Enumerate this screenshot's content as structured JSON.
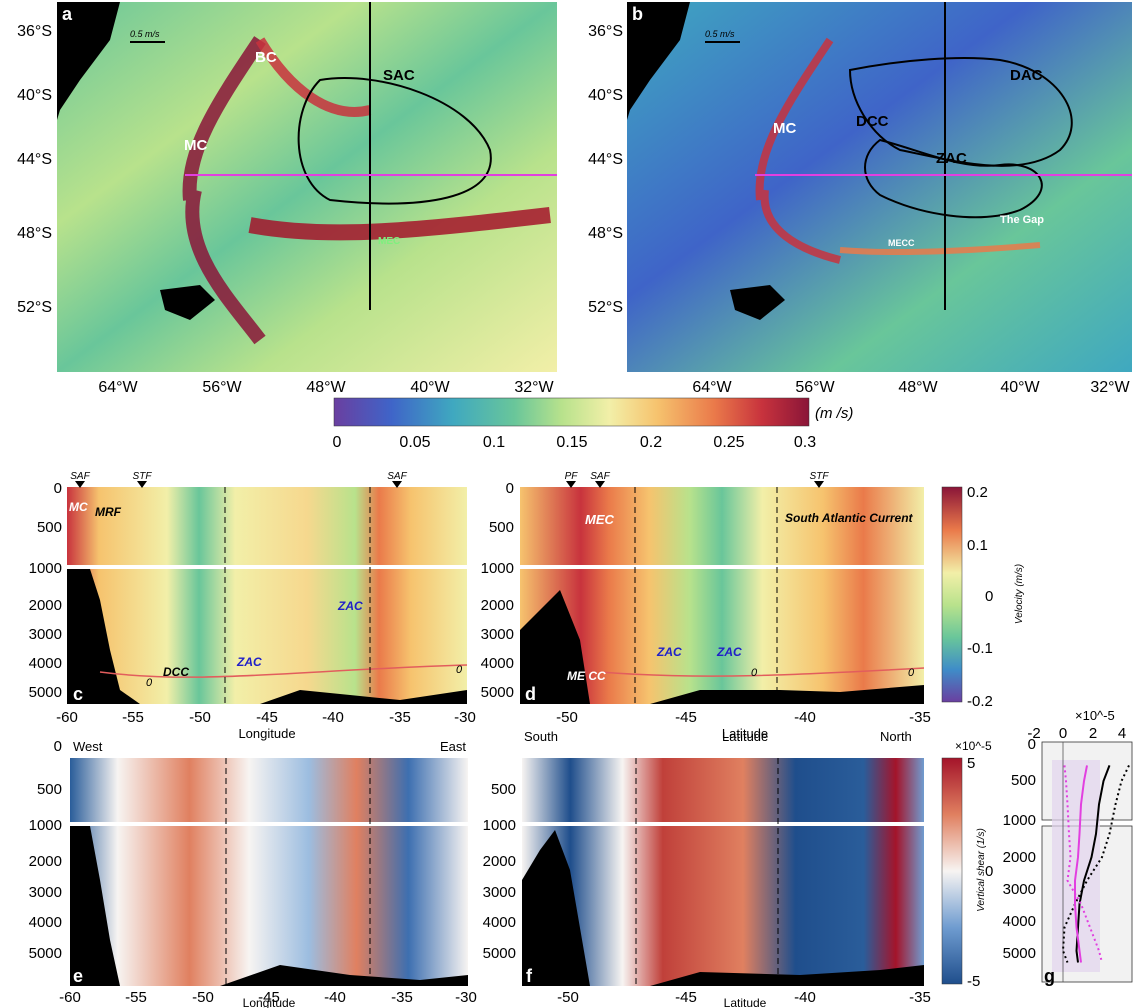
{
  "maps": {
    "a": {
      "panel_label": "a",
      "scale_label": "0.5 m/s",
      "lat_ticks": [
        "36°S",
        "40°S",
        "44°S",
        "48°S",
        "52°S"
      ],
      "lon_ticks": [
        "64°W",
        "56°W",
        "48°W",
        "40°W",
        "32°W"
      ],
      "features": [
        "BC",
        "SAC",
        "MC",
        "MEC"
      ]
    },
    "b": {
      "panel_label": "b",
      "scale_label": "0.5 m/s",
      "lat_ticks": [
        "36°S",
        "40°S",
        "44°S",
        "48°S",
        "52°S"
      ],
      "lon_ticks": [
        "64°W",
        "56°W",
        "48°W",
        "40°W",
        "32°W"
      ],
      "features": [
        "DAC",
        "MC",
        "DCC",
        "ZAC",
        "The Gap",
        "MECC"
      ]
    }
  },
  "colorbar_speed": {
    "ticks": [
      "0",
      "0.05",
      "0.1",
      "0.15",
      "0.2",
      "0.25",
      "0.3"
    ],
    "unit": "(m /s)"
  },
  "colors": {
    "map_colormap": [
      "#6a3fa0",
      "#3f64c8",
      "#3fa8c0",
      "#69c69a",
      "#b8e28c",
      "#f2efa8",
      "#f6c36e",
      "#ea7a4a",
      "#c8333d",
      "#8a1538"
    ],
    "diverging_negative": "#1f4e8c",
    "diverging_positive": "#a4142a",
    "section_line": "#e23fe0",
    "bathymetry": "#000000"
  },
  "chart_data": [
    {
      "type": "heatmap",
      "panel": "c",
      "xlabel": "Longitude",
      "x_ticks": [
        "-60",
        "-55",
        "-50",
        "-45",
        "-40",
        "-35",
        "-30"
      ],
      "xlim": [
        -60,
        -30
      ],
      "y_ticks_upper": [
        "0",
        "500",
        "1000"
      ],
      "y_ticks_lower": [
        "2000",
        "3000",
        "4000",
        "5000"
      ],
      "top_markers": [
        "SAF",
        "STF",
        "SAF"
      ],
      "labels": [
        "MC",
        "MRF",
        "ZAC",
        "ZAC",
        "DCC",
        "0",
        "0"
      ]
    },
    {
      "type": "heatmap",
      "panel": "d",
      "xlabel": "Latitude",
      "x_ticks": [
        "-50",
        "-45",
        "-40",
        "-35"
      ],
      "xlim": [
        -52,
        -35
      ],
      "y_ticks_upper": [
        "0",
        "500",
        "1000"
      ],
      "y_ticks_lower": [
        "2000",
        "3000",
        "4000",
        "5000"
      ],
      "top_markers": [
        "PF",
        "SAF",
        "STF"
      ],
      "labels": [
        "MEC",
        "South Atlantic Current",
        "ZAC",
        "ZAC",
        "ME CC",
        "0",
        "0"
      ],
      "colorbar": {
        "ticks": [
          "0.2",
          "0.1",
          "0",
          "-0.1",
          "-0.2"
        ],
        "label": "Velocity (m/s)"
      }
    },
    {
      "type": "heatmap",
      "panel": "e",
      "xlabel": "Longitude",
      "x_ticks": [
        "-60",
        "-55",
        "-50",
        "-45",
        "-40",
        "-35",
        "-30"
      ],
      "xlim": [
        -60,
        -30
      ],
      "y_ticks_upper": [
        "0",
        "500",
        "1000"
      ],
      "y_ticks_lower": [
        "2000",
        "3000",
        "4000",
        "5000"
      ],
      "corner_labels": [
        "West",
        "East"
      ]
    },
    {
      "type": "heatmap",
      "panel": "f",
      "xlabel": "Latitude",
      "x_ticks": [
        "-50",
        "-45",
        "-40",
        "-35"
      ],
      "xlim": [
        -52,
        -35
      ],
      "y_ticks_upper": [
        "500",
        "1000"
      ],
      "y_ticks_lower": [
        "2000",
        "3000",
        "4000",
        "5000"
      ],
      "corner_labels": [
        "South",
        "Latitude",
        "North"
      ],
      "colorbar": {
        "ticks": [
          "5",
          "0",
          "-5"
        ],
        "label": "Vertical shear (1/s)",
        "exponent": "×10^-5"
      }
    },
    {
      "type": "line",
      "panel": "g",
      "x_ticks": [
        "-2",
        "0",
        "2",
        "4"
      ],
      "exponent": "×10^-5",
      "xlim": [
        -2,
        4
      ],
      "y_ticks_upper": [
        "0",
        "500",
        "1000"
      ],
      "y_ticks_lower": [
        "2000",
        "3000",
        "4000",
        "5000"
      ],
      "series": [
        {
          "style": "solid-black",
          "x": [
            2.5,
            2.1,
            1.8,
            1.6,
            1.3,
            0.8,
            0.5,
            0.4,
            0.3,
            0.4
          ],
          "y": [
            300,
            500,
            800,
            1200,
            1800,
            2400,
            3000,
            3600,
            4200,
            4500
          ]
        },
        {
          "style": "dotted-black",
          "x": [
            3.8,
            3.3,
            2.9,
            2.5,
            2.0,
            1.0,
            0.2,
            -0.5,
            -0.6,
            -0.3
          ],
          "y": [
            300,
            500,
            800,
            1200,
            1800,
            2400,
            3000,
            3600,
            4200,
            4500
          ]
        },
        {
          "style": "solid-magenta",
          "x": [
            1.0,
            0.8,
            0.6,
            0.5,
            0.4,
            0.2,
            0.2,
            0.3,
            0.5,
            0.6
          ],
          "y": [
            300,
            500,
            800,
            1200,
            1800,
            2400,
            3000,
            3600,
            4200,
            4500
          ]
        },
        {
          "style": "dotted-magenta",
          "x": [
            -0.5,
            -0.4,
            -0.3,
            -0.2,
            -0.1,
            -0.3,
            0.6,
            1.2,
            1.8,
            2.0
          ],
          "y": [
            300,
            500,
            800,
            1200,
            1800,
            2400,
            3000,
            3600,
            4200,
            4500
          ]
        }
      ]
    }
  ]
}
